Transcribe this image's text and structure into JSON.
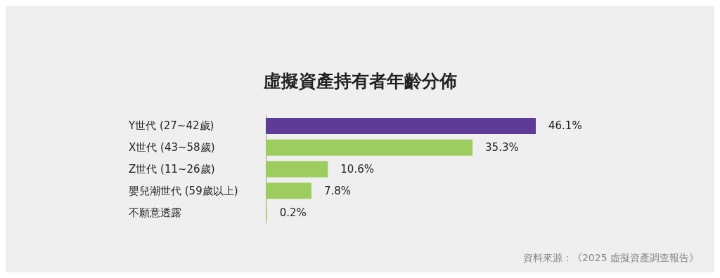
{
  "chart_data": {
    "type": "bar",
    "orientation": "horizontal",
    "title": "虛擬資產持有者年齡分佈",
    "categories": [
      "Y世代 (27~42歲)",
      "X世代 (43~58歲)",
      "Z世代 (11~26歲)",
      "嬰兒潮世代 (59歲以上)",
      "不願意透露"
    ],
    "values": [
      46.1,
      35.3,
      10.6,
      7.8,
      0.2
    ],
    "colors": [
      "#5e3b96",
      "#9dcc5f",
      "#9dcc5f",
      "#9dcc5f",
      "#9dcc5f"
    ],
    "value_labels": [
      "46.1%",
      "35.3%",
      "10.6%",
      "7.8%",
      "0.2%"
    ],
    "grid": false,
    "annotations": [
      "資料來源：《2025 虛擬資產調查報告》"
    ]
  }
}
